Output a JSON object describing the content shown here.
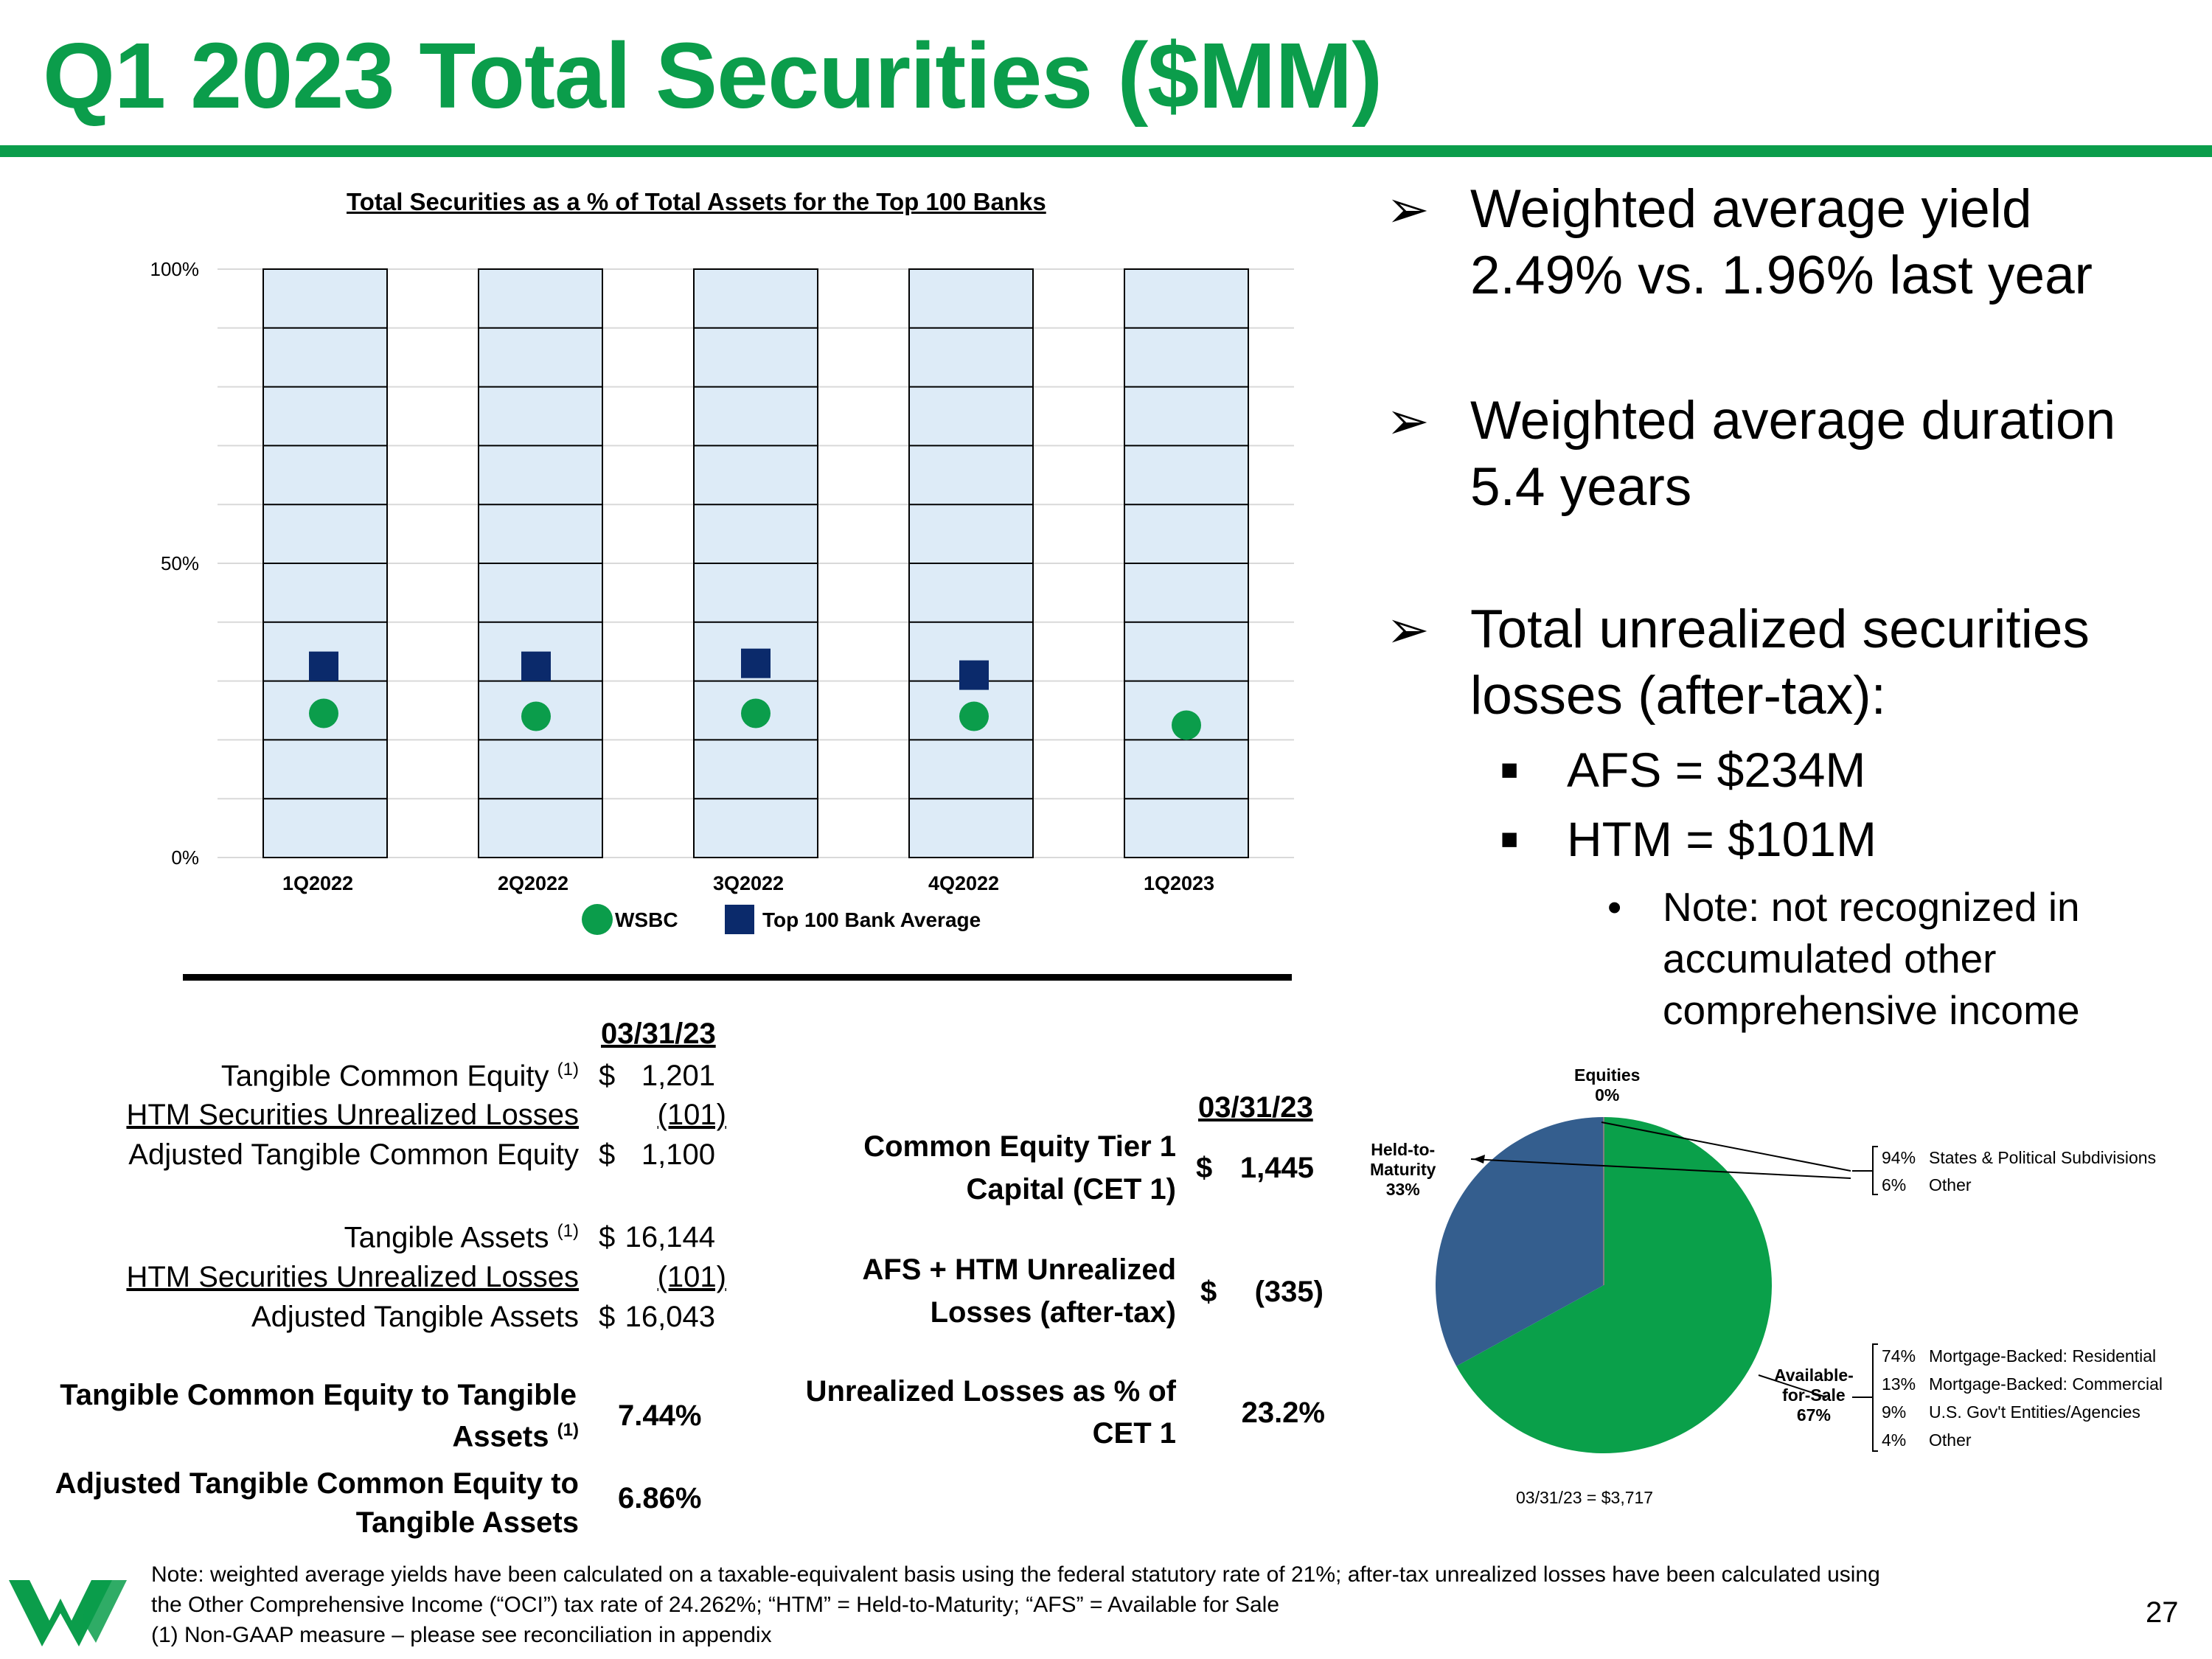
{
  "title": "Q1 2023 Total Securities ($MM)",
  "chart_data": {
    "type": "scatter",
    "title": "Total Securities as a % of Total Assets for the Top 100 Banks",
    "categories": [
      "1Q2022",
      "2Q2022",
      "3Q2022",
      "4Q2022",
      "1Q2023"
    ],
    "series": [
      {
        "name": "WSBC",
        "values": [
          24.5,
          24,
          24.5,
          24,
          22.5
        ],
        "color": "#0B9D4B",
        "marker": "circle"
      },
      {
        "name": "Top 100 Bank Average",
        "values": [
          32.5,
          32.5,
          33,
          31,
          null
        ],
        "color": "#0B2A6B",
        "marker": "square"
      }
    ],
    "ylim": [
      0,
      100
    ],
    "yticks": [
      "0%",
      "50%",
      "100%"
    ],
    "bar_fill": "#DDEBF7"
  },
  "bullets": {
    "b1_line1": "Weighted average yield",
    "b1_line2": "2.49% vs. 1.96% last year",
    "b2_line1": "Weighted average duration",
    "b2_line2": "5.4 years",
    "b3_line1": "Total unrealized securities",
    "b3_line2": "losses (after-tax):",
    "afs": "AFS = $234M",
    "htm": "HTM = $101M",
    "note_line1": "Note: not recognized in",
    "note_line2": "accumulated other",
    "note_line3": "comprehensive income"
  },
  "left_table": {
    "date": "03/31/23",
    "tce_label": "Tangible Common Equity",
    "sup1": "(1)",
    "tce_dollar": "$",
    "tce_value": "1,201",
    "htm_label": "HTM Securities Unrealized Losses",
    "htm_value": "(101)",
    "atce_label": "Adjusted Tangible Common Equity",
    "atce_dollar": "$",
    "atce_value": "1,100",
    "ta_label": "Tangible Assets",
    "ta_dollar": "$",
    "ta_value": "16,144",
    "htm2_label": "HTM Securities Unrealized Losses",
    "htm2_value": "(101)",
    "ata_label": "Adjusted Tangible Assets",
    "ata_dollar": "$",
    "ata_value": "16,043",
    "ratio1_line1": "Tangible Common Equity to Tangible",
    "ratio1_line2": "Assets",
    "ratio1_value": "7.44%",
    "ratio2_line1": "Adjusted Tangible Common Equity to",
    "ratio2_line2": "Tangible Assets",
    "ratio2_value": "6.86%"
  },
  "mid_table": {
    "date": "03/31/23",
    "cet_line1": "Common Equity Tier 1",
    "cet_line2": "Capital (CET 1)",
    "cet_dollar": "$",
    "cet_value": "1,445",
    "unr_line1": "AFS + HTM Unrealized",
    "unr_line2": "Losses (after-tax)",
    "unr_dollar": "$",
    "unr_value": "(335)",
    "pct_line1": "Unrealized Losses as % of",
    "pct_line2": "CET 1",
    "pct_value": "23.2%"
  },
  "pie": {
    "slices": [
      {
        "label": "Available-for-Sale",
        "value": 67,
        "color": "#0AA04A"
      },
      {
        "label": "Held-to-Maturity",
        "value": 33,
        "color": "#345E8E"
      },
      {
        "label": "Equities",
        "value": 0,
        "color": "#7F7F7F"
      }
    ],
    "equities_l1": "Equities",
    "equities_l2": "0%",
    "htm_l1": "Held-to-",
    "htm_l2": "Maturity",
    "htm_l3": "33%",
    "afs_l1": "Available-",
    "afs_l2": "for-Sale",
    "afs_l3": "67%",
    "total": "03/31/23  =  $3,717",
    "htm_breakdown": [
      {
        "pct": "94%",
        "label": "States & Political Subdivisions"
      },
      {
        "pct": "6%",
        "label": "Other"
      }
    ],
    "afs_breakdown": [
      {
        "pct": "74%",
        "label": "Mortgage-Backed: Residential"
      },
      {
        "pct": "13%",
        "label": "Mortgage-Backed: Commercial"
      },
      {
        "pct": "9%",
        "label": "U.S. Gov't Entities/Agencies"
      },
      {
        "pct": "4%",
        "label": "Other"
      }
    ]
  },
  "footnote": {
    "line1": "Note: weighted average yields have been calculated on a taxable-equivalent basis using the federal statutory rate of 21%; after-tax unrealized losses have been calculated using",
    "line2": "the Other Comprehensive Income (“OCI”) tax rate of 24.262%; “HTM” = Held-to-Maturity; “AFS” = Available for Sale",
    "line3": "(1)    Non-GAAP measure – please see reconciliation in appendix"
  },
  "page_number": "27",
  "brand_color": "#0B9D4B"
}
